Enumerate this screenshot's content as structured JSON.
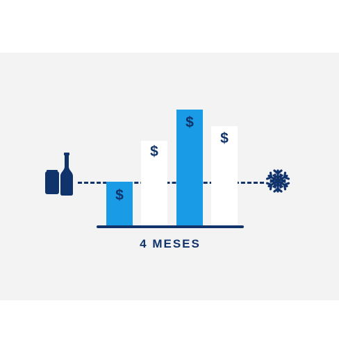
{
  "caption": "4 MESES",
  "bars": [
    {
      "symbol": "$",
      "level": "low",
      "color": "#1a9be6"
    },
    {
      "symbol": "$",
      "level": "medium",
      "color": "#ffffff"
    },
    {
      "symbol": "$",
      "level": "high",
      "color": "#1a9be6"
    },
    {
      "symbol": "$",
      "level": "medium",
      "color": "#ffffff"
    }
  ],
  "icons": {
    "left": [
      "can-icon",
      "bottle-icon"
    ],
    "right": "snowflake-icon"
  },
  "colors": {
    "navy": "#10336b",
    "blue": "#1a9be6",
    "panel": "#f3f3f3"
  }
}
